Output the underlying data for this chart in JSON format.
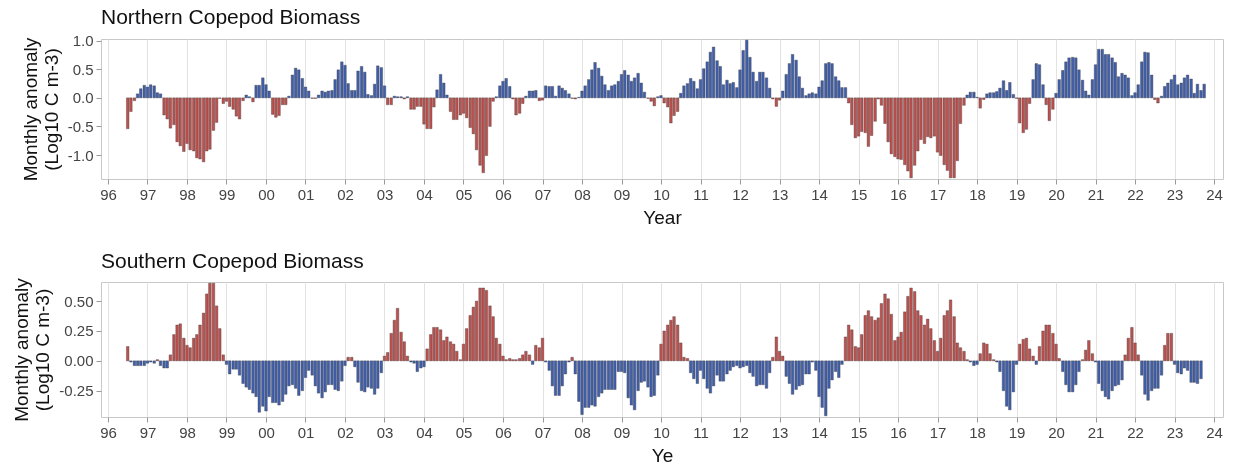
{
  "chart_data": [
    {
      "type": "bar",
      "title": "Northern Copepod Biomass",
      "xlabel": "Year",
      "ylabel": "Monthly anomaly\n(Log10 C m-3)",
      "xlim": [
        1995.95,
        2024.1
      ],
      "xticks": [
        {
          "value": 1996,
          "label": "96"
        },
        {
          "value": 1997,
          "label": "97"
        },
        {
          "value": 1998,
          "label": "98"
        },
        {
          "value": 1999,
          "label": "99"
        },
        {
          "value": 2000,
          "label": "00"
        },
        {
          "value": 2001,
          "label": "01"
        },
        {
          "value": 2002,
          "label": "02"
        },
        {
          "value": 2003,
          "label": "03"
        },
        {
          "value": 2004,
          "label": "04"
        },
        {
          "value": 2005,
          "label": "05"
        },
        {
          "value": 2006,
          "label": "06"
        },
        {
          "value": 2007,
          "label": "07"
        },
        {
          "value": 2008,
          "label": "08"
        },
        {
          "value": 2009,
          "label": "09"
        },
        {
          "value": 2010,
          "label": "10"
        },
        {
          "value": 2011,
          "label": "11"
        },
        {
          "value": 2012,
          "label": "12"
        },
        {
          "value": 2013,
          "label": "13"
        },
        {
          "value": 2014,
          "label": "14"
        },
        {
          "value": 2015,
          "label": "15"
        },
        {
          "value": 2016,
          "label": "16"
        },
        {
          "value": 2017,
          "label": "17"
        },
        {
          "value": 2018,
          "label": "18"
        },
        {
          "value": 2019,
          "label": "19"
        },
        {
          "value": 2020,
          "label": "20"
        },
        {
          "value": 2021,
          "label": "21"
        },
        {
          "value": 2022,
          "label": "22"
        },
        {
          "value": 2023,
          "label": "23"
        },
        {
          "value": 2024,
          "label": "24"
        }
      ],
      "ylim": [
        -1.42,
        1.03
      ],
      "yticks": [
        {
          "value": -1,
          "label": "-1.0"
        },
        -0.5,
        {
          "value": 0,
          "label": "0.0"
        },
        0.5,
        {
          "value": 1,
          "label": "1.0"
        }
      ],
      "grid": "x",
      "x": [
        1996.5,
        1996.58,
        1996.67,
        1996.75,
        1996.83,
        1996.92,
        1997,
        1997.08,
        1997.17,
        1997.25,
        1997.33,
        1997.42,
        1997.5,
        1997.58,
        1997.67,
        1997.75,
        1997.83,
        1997.92,
        1998,
        1998.08,
        1998.17,
        1998.25,
        1998.33,
        1998.42,
        1998.5,
        1998.58,
        1998.67,
        1998.75,
        1998.83,
        1998.92,
        1999,
        1999.08,
        1999.17,
        1999.25,
        1999.33,
        1999.42,
        1999.5,
        1999.58,
        1999.67,
        1999.75,
        1999.83,
        1999.92,
        2000,
        2000.08,
        2000.17,
        2000.25,
        2000.33,
        2000.42,
        2000.5,
        2000.58,
        2000.67,
        2000.75,
        2000.83,
        2000.92,
        2001,
        2001.08,
        2001.17,
        2001.25,
        2001.33,
        2001.42,
        2001.5,
        2001.58,
        2001.67,
        2001.75,
        2001.83,
        2001.92,
        2002,
        2002.08,
        2002.17,
        2002.25,
        2002.33,
        2002.42,
        2002.5,
        2002.58,
        2002.67,
        2002.75,
        2002.83,
        2002.92,
        2003,
        2003.08,
        2003.17,
        2003.25,
        2003.33,
        2003.42,
        2003.5,
        2003.58,
        2003.67,
        2003.75,
        2003.83,
        2003.92,
        2004,
        2004.08,
        2004.17,
        2004.25,
        2004.33,
        2004.42,
        2004.5,
        2004.58,
        2004.67,
        2004.75,
        2004.83,
        2004.92,
        2005,
        2005.08,
        2005.17,
        2005.25,
        2005.33,
        2005.42,
        2005.5,
        2005.58,
        2005.67,
        2005.75,
        2005.83,
        2005.92,
        2006,
        2006.08,
        2006.17,
        2006.25,
        2006.33,
        2006.42,
        2006.5,
        2006.58,
        2006.67,
        2006.75,
        2006.83,
        2006.92,
        2007,
        2007.08,
        2007.17,
        2007.25,
        2007.33,
        2007.42,
        2007.5,
        2007.58,
        2007.67,
        2007.75,
        2007.83,
        2007.92,
        2008,
        2008.08,
        2008.17,
        2008.25,
        2008.33,
        2008.42,
        2008.5,
        2008.58,
        2008.67,
        2008.75,
        2008.83,
        2008.92,
        2009,
        2009.08,
        2009.17,
        2009.25,
        2009.33,
        2009.42,
        2009.5,
        2009.58,
        2009.67,
        2009.75,
        2009.83,
        2009.92,
        2010,
        2010.08,
        2010.17,
        2010.25,
        2010.33,
        2010.42,
        2010.5,
        2010.58,
        2010.67,
        2010.75,
        2010.83,
        2010.92,
        2011,
        2011.08,
        2011.17,
        2011.25,
        2011.33,
        2011.42,
        2011.5,
        2011.58,
        2011.67,
        2011.75,
        2011.83,
        2011.92,
        2012,
        2012.08,
        2012.17,
        2012.25,
        2012.33,
        2012.42,
        2012.5,
        2012.58,
        2012.67,
        2012.75,
        2012.83,
        2012.92,
        2013,
        2013.08,
        2013.17,
        2013.25,
        2013.33,
        2013.42,
        2013.5,
        2013.58,
        2013.67,
        2013.75,
        2013.83,
        2013.92,
        2014,
        2014.08,
        2014.17,
        2014.25,
        2014.33,
        2014.42,
        2014.5,
        2014.58,
        2014.67,
        2014.75,
        2014.83,
        2014.92,
        2015,
        2015.08,
        2015.17,
        2015.25,
        2015.33,
        2015.42,
        2015.5,
        2015.58,
        2015.67,
        2015.75,
        2015.83,
        2015.92,
        2016,
        2016.08,
        2016.17,
        2016.25,
        2016.33,
        2016.42,
        2016.5,
        2016.58,
        2016.67,
        2016.75,
        2016.83,
        2016.92,
        2017,
        2017.08,
        2017.17,
        2017.25,
        2017.33,
        2017.42,
        2017.5,
        2017.58,
        2017.67,
        2017.75,
        2017.83,
        2017.92,
        2018,
        2018.08,
        2018.17,
        2018.25,
        2018.33,
        2018.42,
        2018.5,
        2018.58,
        2018.67,
        2018.75,
        2018.83,
        2018.92,
        2019,
        2019.08,
        2019.17,
        2019.25,
        2019.33,
        2019.42,
        2019.5,
        2019.58,
        2019.67,
        2019.75,
        2019.83,
        2019.92,
        2020,
        2020.08,
        2020.17,
        2020.25,
        2020.33,
        2020.42,
        2020.5,
        2020.58,
        2020.67,
        2020.75,
        2020.83,
        2020.92,
        2021,
        2021.08,
        2021.17,
        2021.25,
        2021.33,
        2021.42,
        2021.5,
        2021.58,
        2021.67,
        2021.75,
        2021.83,
        2021.92,
        2022,
        2022.08,
        2022.17,
        2022.25,
        2022.33,
        2022.42,
        2022.5,
        2022.58,
        2022.67,
        2022.75,
        2022.83,
        2022.92,
        2023,
        2023.08,
        2023.17,
        2023.25,
        2023.33,
        2023.42,
        2023.5,
        2023.58,
        2023.67,
        2023.75
      ],
      "values": [
        -0.54,
        -0.24,
        -0.05,
        0.07,
        0.16,
        0.22,
        0.19,
        0.23,
        0.21,
        0.09,
        0.07,
        -0.3,
        -0.37,
        -0.53,
        -0.47,
        -0.77,
        -0.84,
        -0.94,
        -0.8,
        -0.91,
        -0.93,
        -1.05,
        -1.07,
        -1.12,
        -0.93,
        -0.9,
        -0.57,
        -0.43,
        -0.01,
        -0.1,
        -0.06,
        -0.15,
        -0.2,
        -0.32,
        -0.37,
        -0.05,
        0.05,
        0.02,
        -0.07,
        0.22,
        0.22,
        0.35,
        0.23,
        0.12,
        -0.29,
        -0.34,
        -0.31,
        -0.12,
        -0.12,
        0.03,
        0.4,
        0.52,
        0.49,
        0.34,
        0.19,
        0.12,
        -0.01,
        -0.01,
        0.05,
        0.12,
        0.1,
        0.12,
        0.13,
        0.32,
        0.49,
        0.63,
        0.57,
        0.25,
        0.13,
        0.13,
        0.47,
        0.55,
        0.45,
        0.06,
        0.04,
        0.24,
        0.56,
        0.53,
        0.21,
        -0.12,
        -0.12,
        0.03,
        0.02,
        0.02,
        -0.02,
        0.02,
        -0.2,
        -0.2,
        -0.15,
        -0.15,
        -0.46,
        -0.54,
        -0.54,
        -0.16,
        0.14,
        0.41,
        0.26,
        0.05,
        -0.24,
        -0.38,
        -0.38,
        -0.3,
        -0.27,
        -0.35,
        -0.52,
        -0.63,
        -0.91,
        -1.18,
        -1.31,
        -1.01,
        -0.5,
        -0.06,
        0.02,
        0.21,
        0.29,
        0.34,
        0.2,
        -0.02,
        -0.3,
        -0.27,
        -0.1,
        0.03,
        0.12,
        0.12,
        0.13,
        -0.05,
        -0.04,
        0.21,
        0.2,
        0.2,
        0.03,
        0.21,
        0.17,
        0.13,
        0.07,
        -0.01,
        -0.02,
        0.01,
        0.12,
        0.21,
        0.32,
        0.49,
        0.62,
        0.52,
        0.38,
        0.23,
        0.13,
        0.21,
        0.23,
        0.29,
        0.41,
        0.48,
        0.4,
        0.29,
        0.35,
        0.43,
        0.26,
        0.1,
        -0.01,
        -0.06,
        -0.14,
        0.02,
        0.04,
        -0.09,
        -0.16,
        -0.44,
        -0.31,
        -0.24,
        0.08,
        0.21,
        0.25,
        0.34,
        0.29,
        0.16,
        0.32,
        0.51,
        0.63,
        0.8,
        0.89,
        0.65,
        0.55,
        0.23,
        0.31,
        0.25,
        0.27,
        0.18,
        0.49,
        0.83,
        1.01,
        0.71,
        0.45,
        0.29,
        0.45,
        0.45,
        0.35,
        0.17,
        -0.02,
        -0.15,
        -0.04,
        0.12,
        0.41,
        0.6,
        0.76,
        0.66,
        0.37,
        0.17,
        0.04,
        0.07,
        0.09,
        0.07,
        0.19,
        0.3,
        0.6,
        0.62,
        0.6,
        0.37,
        0.3,
        0.18,
        0.18,
        -0.09,
        -0.47,
        -0.7,
        -0.67,
        -0.59,
        -0.61,
        -0.85,
        -0.66,
        -0.41,
        -0.02,
        -0.13,
        -0.45,
        -0.77,
        -0.98,
        -1.03,
        -1.07,
        -1.08,
        -1.17,
        -1.28,
        -1.4,
        -1.18,
        -0.93,
        -0.73,
        -0.8,
        -0.68,
        -0.7,
        -0.67,
        -0.95,
        -1.01,
        -1.17,
        -1.27,
        -1.4,
        -1.4,
        -1.1,
        -0.45,
        -0.13,
        0.05,
        0.1,
        0.1,
        0.01,
        -0.18,
        -0.03,
        0.07,
        0.09,
        0.09,
        0.11,
        0.17,
        0.3,
        0.13,
        0.27,
        0.06,
        -0.01,
        -0.44,
        -0.61,
        -0.55,
        -0.1,
        0.32,
        0.6,
        0.58,
        0.23,
        -0.12,
        -0.4,
        -0.2,
        0.08,
        0.32,
        0.48,
        0.63,
        0.7,
        0.71,
        0.7,
        0.49,
        0.31,
        0.12,
        0.05,
        0.32,
        0.58,
        0.85,
        0.85,
        0.76,
        0.76,
        0.7,
        0.62,
        0.37,
        0.43,
        0.4,
        0.35,
        0.04,
        0.09,
        0.23,
        0.63,
        0.8,
        0.79,
        0.4,
        -0.03,
        -0.09,
        0.03,
        0.2,
        0.26,
        0.32,
        0.4,
        0.23,
        0.26,
        0.35,
        0.4,
        0.33,
        0.08,
        0.24,
        0.13,
        0.24
      ],
      "colors": [
        "#c0504d",
        "#c0504d",
        "#c0504d",
        "#3f5fae",
        "#3f5fae",
        "#3f5fae",
        "#3f5fae",
        "#3f5fae",
        "#3f5fae",
        "#3f5fae",
        "#3f5fae",
        "#c0504d",
        "#c0504d",
        "#c0504d",
        "#c0504d",
        "#c0504d",
        "#c0504d",
        "#c0504d",
        "#c0504d",
        "#c0504d",
        "#c0504d",
        "#c0504d",
        "#c0504d",
        "#c0504d",
        "#c0504d",
        "#c0504d",
        "#c0504d",
        "#c0504d",
        "#c0504d",
        "#c0504d",
        "#c0504d",
        "#c0504d",
        "#c0504d",
        "#c0504d",
        "#c0504d",
        "#c0504d",
        "#3f5fae",
        "#3f5fae",
        "#c0504d",
        "#3f5fae",
        "#3f5fae",
        "#3f5fae",
        "#3f5fae",
        "#3f5fae",
        "#c0504d",
        "#c0504d",
        "#c0504d",
        "#c0504d",
        "#c0504d",
        "#3f5fae",
        "#3f5fae",
        "#3f5fae",
        "#3f5fae",
        "#3f5fae",
        "#3f5fae",
        "#3f5fae",
        "#c0504d",
        "#c0504d",
        "#3f5fae",
        "#3f5fae",
        "#3f5fae",
        "#3f5fae",
        "#3f5fae",
        "#3f5fae",
        "#3f5fae",
        "#3f5fae",
        "#3f5fae",
        "#3f5fae",
        "#3f5fae",
        "#3f5fae",
        "#3f5fae",
        "#3f5fae",
        "#3f5fae",
        "#3f5fae",
        "#3f5fae",
        "#3f5fae",
        "#3f5fae",
        "#3f5fae",
        "#3f5fae",
        "#c0504d",
        "#c0504d",
        "#3f5fae",
        "#3f5fae",
        "#3f5fae",
        "#c0504d",
        "#3f5fae",
        "#c0504d",
        "#c0504d",
        "#c0504d",
        "#c0504d",
        "#c0504d",
        "#c0504d",
        "#c0504d",
        "#c0504d",
        "#3f5fae",
        "#3f5fae",
        "#3f5fae",
        "#3f5fae",
        "#c0504d",
        "#c0504d",
        "#c0504d",
        "#c0504d",
        "#c0504d",
        "#c0504d",
        "#c0504d",
        "#c0504d",
        "#c0504d",
        "#c0504d",
        "#c0504d",
        "#c0504d",
        "#c0504d",
        "#c0504d",
        "#3f5fae",
        "#3f5fae",
        "#3f5fae",
        "#3f5fae",
        "#3f5fae",
        "#c0504d",
        "#c0504d",
        "#c0504d",
        "#c0504d",
        "#3f5fae",
        "#3f5fae",
        "#3f5fae",
        "#3f5fae",
        "#c0504d",
        "#c0504d",
        "#3f5fae",
        "#3f5fae",
        "#3f5fae",
        "#3f5fae",
        "#3f5fae",
        "#3f5fae",
        "#3f5fae",
        "#3f5fae",
        "#c0504d",
        "#c0504d",
        "#3f5fae",
        "#3f5fae",
        "#3f5fae",
        "#3f5fae",
        "#3f5fae",
        "#3f5fae",
        "#3f5fae",
        "#3f5fae",
        "#3f5fae",
        "#3f5fae",
        "#3f5fae",
        "#3f5fae",
        "#3f5fae",
        "#3f5fae",
        "#3f5fae",
        "#3f5fae",
        "#3f5fae",
        "#3f5fae",
        "#3f5fae",
        "#3f5fae",
        "#3f5fae",
        "#c0504d",
        "#c0504d",
        "#c0504d",
        "#3f5fae",
        "#3f5fae",
        "#c0504d",
        "#c0504d",
        "#c0504d",
        "#c0504d",
        "#c0504d",
        "#3f5fae",
        "#3f5fae",
        "#3f5fae",
        "#3f5fae",
        "#3f5fae",
        "#3f5fae",
        "#3f5fae",
        "#3f5fae",
        "#3f5fae",
        "#3f5fae",
        "#3f5fae",
        "#3f5fae",
        "#3f5fae",
        "#3f5fae",
        "#3f5fae",
        "#3f5fae",
        "#3f5fae",
        "#3f5fae",
        "#3f5fae",
        "#3f5fae",
        "#3f5fae",
        "#3f5fae",
        "#3f5fae",
        "#3f5fae",
        "#3f5fae",
        "#3f5fae",
        "#3f5fae",
        "#3f5fae",
        "#c0504d",
        "#c0504d",
        "#c0504d",
        "#3f5fae",
        "#3f5fae",
        "#3f5fae",
        "#3f5fae",
        "#3f5fae",
        "#3f5fae",
        "#3f5fae",
        "#3f5fae",
        "#3f5fae",
        "#3f5fae",
        "#3f5fae",
        "#3f5fae",
        "#3f5fae",
        "#3f5fae",
        "#3f5fae",
        "#3f5fae",
        "#3f5fae",
        "#3f5fae",
        "#3f5fae",
        "#3f5fae",
        "#c0504d",
        "#c0504d",
        "#c0504d",
        "#c0504d",
        "#c0504d",
        "#c0504d",
        "#c0504d",
        "#c0504d",
        "#c0504d",
        "#c0504d",
        "#c0504d",
        "#c0504d",
        "#c0504d",
        "#c0504d",
        "#c0504d",
        "#c0504d",
        "#c0504d",
        "#c0504d",
        "#c0504d",
        "#c0504d",
        "#c0504d",
        "#c0504d",
        "#c0504d",
        "#c0504d",
        "#c0504d",
        "#c0504d",
        "#c0504d",
        "#c0504d",
        "#c0504d",
        "#c0504d",
        "#c0504d",
        "#c0504d",
        "#c0504d",
        "#c0504d",
        "#c0504d",
        "#c0504d",
        "#3f5fae",
        "#3f5fae",
        "#3f5fae",
        "#3f5fae",
        "#c0504d",
        "#c0504d",
        "#3f5fae",
        "#3f5fae",
        "#3f5fae",
        "#3f5fae",
        "#3f5fae",
        "#3f5fae",
        "#3f5fae",
        "#3f5fae",
        "#3f5fae",
        "#c0504d",
        "#c0504d",
        "#c0504d",
        "#c0504d",
        "#c0504d",
        "#3f5fae",
        "#3f5fae",
        "#3f5fae",
        "#3f5fae",
        "#c0504d",
        "#c0504d",
        "#c0504d",
        "#3f5fae",
        "#3f5fae",
        "#3f5fae",
        "#3f5fae",
        "#3f5fae",
        "#3f5fae",
        "#3f5fae",
        "#3f5fae",
        "#3f5fae",
        "#3f5fae",
        "#3f5fae",
        "#3f5fae",
        "#3f5fae",
        "#3f5fae",
        "#3f5fae",
        "#3f5fae",
        "#3f5fae",
        "#3f5fae",
        "#3f5fae",
        "#3f5fae",
        "#3f5fae",
        "#3f5fae",
        "#3f5fae",
        "#3f5fae",
        "#3f5fae",
        "#3f5fae",
        "#3f5fae",
        "#3f5fae",
        "#3f5fae",
        "#3f5fae",
        "#c0504d",
        "#c0504d",
        "#3f5fae",
        "#3f5fae",
        "#3f5fae",
        "#3f5fae",
        "#3f5fae",
        "#3f5fae",
        "#3f5fae",
        "#3f5fae",
        "#3f5fae",
        "#3f5fae",
        "#3f5fae",
        "#3f5fae",
        "#3f5fae",
        "#3f5fae"
      ]
    },
    {
      "type": "bar",
      "title": "Southern Copepod Biomass",
      "xlabel": "Ye",
      "ylabel": "Monthly anomaly\n(Log10 C m-3)",
      "xlim": [
        1995.95,
        2024.1
      ],
      "xticks": [
        {
          "value": 1996,
          "label": "96"
        },
        {
          "value": 1997,
          "label": "97"
        },
        {
          "value": 1998,
          "label": "98"
        },
        {
          "value": 1999,
          "label": "99"
        },
        {
          "value": 2000,
          "label": "00"
        },
        {
          "value": 2001,
          "label": "01"
        },
        {
          "value": 2002,
          "label": "02"
        },
        {
          "value": 2003,
          "label": "03"
        },
        {
          "value": 2004,
          "label": "04"
        },
        {
          "value": 2005,
          "label": "05"
        },
        {
          "value": 2006,
          "label": "06"
        },
        {
          "value": 2007,
          "label": "07"
        },
        {
          "value": 2008,
          "label": "08"
        },
        {
          "value": 2009,
          "label": "09"
        },
        {
          "value": 2010,
          "label": "10"
        },
        {
          "value": 2011,
          "label": "11"
        },
        {
          "value": 2012,
          "label": "12"
        },
        {
          "value": 2013,
          "label": "13"
        },
        {
          "value": 2014,
          "label": "14"
        },
        {
          "value": 2015,
          "label": "15"
        },
        {
          "value": 2016,
          "label": "16"
        },
        {
          "value": 2017,
          "label": "17"
        },
        {
          "value": 2018,
          "label": "18"
        },
        {
          "value": 2019,
          "label": "19"
        },
        {
          "value": 2020,
          "label": "20"
        },
        {
          "value": 2021,
          "label": "21"
        },
        {
          "value": 2022,
          "label": "22"
        },
        {
          "value": 2023,
          "label": "23"
        },
        {
          "value": 2024,
          "label": "24"
        }
      ],
      "ylim": [
        -0.47,
        0.66
      ],
      "yticks": [
        -0.25,
        {
          "value": 0,
          "label": "0.00"
        },
        0.25,
        {
          "value": 0.5,
          "label": "0.50"
        }
      ],
      "grid": "x",
      "x": [
        1996.5,
        1996.58,
        1996.67,
        1996.75,
        1996.83,
        1996.92,
        1997,
        1997.08,
        1997.17,
        1997.25,
        1997.33,
        1997.42,
        1997.5,
        1997.58,
        1997.67,
        1997.75,
        1997.83,
        1997.92,
        1998,
        1998.08,
        1998.17,
        1998.25,
        1998.33,
        1998.42,
        1998.5,
        1998.58,
        1998.67,
        1998.75,
        1998.83,
        1998.92,
        1999,
        1999.08,
        1999.17,
        1999.25,
        1999.33,
        1999.42,
        1999.5,
        1999.58,
        1999.67,
        1999.75,
        1999.83,
        1999.92,
        2000,
        2000.08,
        2000.17,
        2000.25,
        2000.33,
        2000.42,
        2000.5,
        2000.58,
        2000.67,
        2000.75,
        2000.83,
        2000.92,
        2001,
        2001.08,
        2001.17,
        2001.25,
        2001.33,
        2001.42,
        2001.5,
        2001.58,
        2001.67,
        2001.75,
        2001.83,
        2001.92,
        2002,
        2002.08,
        2002.17,
        2002.25,
        2002.33,
        2002.42,
        2002.5,
        2002.58,
        2002.67,
        2002.75,
        2002.83,
        2002.92,
        2003,
        2003.08,
        2003.17,
        2003.25,
        2003.33,
        2003.42,
        2003.5,
        2003.58,
        2003.67,
        2003.75,
        2003.83,
        2003.92,
        2004,
        2004.08,
        2004.17,
        2004.25,
        2004.33,
        2004.42,
        2004.5,
        2004.58,
        2004.67,
        2004.75,
        2004.83,
        2004.92,
        2005,
        2005.08,
        2005.17,
        2005.25,
        2005.33,
        2005.42,
        2005.5,
        2005.58,
        2005.67,
        2005.75,
        2005.83,
        2005.92,
        2006,
        2006.08,
        2006.17,
        2006.25,
        2006.33,
        2006.42,
        2006.5,
        2006.58,
        2006.67,
        2006.75,
        2006.83,
        2006.92,
        2007,
        2007.08,
        2007.17,
        2007.25,
        2007.33,
        2007.42,
        2007.5,
        2007.58,
        2007.67,
        2007.75,
        2007.83,
        2007.92,
        2008,
        2008.08,
        2008.17,
        2008.25,
        2008.33,
        2008.42,
        2008.5,
        2008.58,
        2008.67,
        2008.75,
        2008.83,
        2008.92,
        2009,
        2009.08,
        2009.17,
        2009.25,
        2009.33,
        2009.42,
        2009.5,
        2009.58,
        2009.67,
        2009.75,
        2009.83,
        2009.92,
        2010,
        2010.08,
        2010.17,
        2010.25,
        2010.33,
        2010.42,
        2010.5,
        2010.58,
        2010.67,
        2010.75,
        2010.83,
        2010.92,
        2011,
        2011.08,
        2011.17,
        2011.25,
        2011.33,
        2011.42,
        2011.5,
        2011.58,
        2011.67,
        2011.75,
        2011.83,
        2011.92,
        2012,
        2012.08,
        2012.17,
        2012.25,
        2012.33,
        2012.42,
        2012.5,
        2012.58,
        2012.67,
        2012.75,
        2012.83,
        2012.92,
        2013,
        2013.08,
        2013.17,
        2013.25,
        2013.33,
        2013.42,
        2013.5,
        2013.58,
        2013.67,
        2013.75,
        2013.83,
        2013.92,
        2014,
        2014.08,
        2014.17,
        2014.25,
        2014.33,
        2014.42,
        2014.5,
        2014.58,
        2014.67,
        2014.75,
        2014.83,
        2014.92,
        2015,
        2015.08,
        2015.17,
        2015.25,
        2015.33,
        2015.42,
        2015.5,
        2015.58,
        2015.67,
        2015.75,
        2015.83,
        2015.92,
        2016,
        2016.08,
        2016.17,
        2016.25,
        2016.33,
        2016.42,
        2016.5,
        2016.58,
        2016.67,
        2016.75,
        2016.83,
        2016.92,
        2017,
        2017.08,
        2017.17,
        2017.25,
        2017.33,
        2017.42,
        2017.5,
        2017.58,
        2017.67,
        2017.75,
        2017.83,
        2017.92,
        2018,
        2018.08,
        2018.17,
        2018.25,
        2018.33,
        2018.42,
        2018.5,
        2018.58,
        2018.67,
        2018.75,
        2018.83,
        2018.92,
        2019,
        2019.08,
        2019.17,
        2019.25,
        2019.33,
        2019.42,
        2019.5,
        2019.58,
        2019.67,
        2019.75,
        2019.83,
        2019.92,
        2020,
        2020.08,
        2020.17,
        2020.25,
        2020.33,
        2020.42,
        2020.5,
        2020.58,
        2020.67,
        2020.75,
        2020.83,
        2020.92,
        2021,
        2021.08,
        2021.17,
        2021.25,
        2021.33,
        2021.42,
        2021.5,
        2021.58,
        2021.67,
        2021.75,
        2021.83,
        2021.92,
        2022,
        2022.08,
        2022.17,
        2022.25,
        2022.33,
        2022.42,
        2022.5,
        2022.58,
        2022.67,
        2022.75,
        2022.83,
        2022.92,
        2023,
        2023.08,
        2023.17,
        2023.25,
        2023.33,
        2023.42,
        2023.5,
        2023.58,
        2023.67
      ],
      "values": [
        0.12,
        -0.01,
        -0.04,
        -0.04,
        -0.04,
        -0.04,
        -0.02,
        -0.01,
        -0.02,
        0.01,
        -0.04,
        -0.06,
        -0.06,
        0.05,
        0.22,
        0.3,
        0.31,
        0.19,
        0.13,
        0.11,
        0.19,
        0.22,
        0.3,
        0.4,
        0.56,
        0.65,
        0.65,
        0.46,
        0.27,
        0.05,
        -0.03,
        -0.11,
        -0.07,
        -0.07,
        -0.12,
        -0.19,
        -0.22,
        -0.24,
        -0.27,
        -0.3,
        -0.43,
        -0.38,
        -0.42,
        -0.3,
        -0.35,
        -0.35,
        -0.37,
        -0.34,
        -0.28,
        -0.21,
        -0.2,
        -0.23,
        -0.29,
        -0.25,
        -0.14,
        -0.08,
        -0.12,
        -0.21,
        -0.27,
        -0.31,
        -0.26,
        -0.2,
        -0.2,
        -0.24,
        -0.25,
        -0.17,
        -0.04,
        0.03,
        0.03,
        -0.05,
        -0.18,
        -0.25,
        -0.26,
        -0.22,
        -0.23,
        -0.28,
        -0.23,
        -0.1,
        0.04,
        0.07,
        0.23,
        0.34,
        0.44,
        0.24,
        0.16,
        0.04,
        -0.01,
        -0.02,
        -0.09,
        -0.06,
        -0.05,
        0.1,
        0.22,
        0.28,
        0.28,
        0.26,
        0.17,
        0.2,
        0.16,
        0.14,
        0.08,
        0.01,
        0.14,
        0.27,
        0.38,
        0.45,
        0.5,
        0.61,
        0.61,
        0.59,
        0.46,
        0.37,
        0.19,
        0.14,
        0.04,
        0.01,
        0.02,
        0.01,
        0.01,
        0.02,
        0.05,
        0.08,
        0.05,
        -0.03,
        0.13,
        0.11,
        0.19,
        -0.01,
        -0.08,
        -0.21,
        -0.29,
        -0.29,
        -0.21,
        -0.11,
        -0.01,
        0.03,
        -0.11,
        -0.34,
        -0.45,
        -0.39,
        -0.39,
        -0.37,
        -0.38,
        -0.3,
        -0.27,
        -0.24,
        -0.24,
        -0.24,
        -0.24,
        -0.09,
        -0.09,
        -0.1,
        -0.31,
        -0.37,
        -0.41,
        -0.25,
        -0.18,
        -0.17,
        -0.22,
        -0.3,
        -0.29,
        -0.12,
        0.14,
        0.25,
        0.3,
        0.34,
        0.37,
        0.3,
        0.15,
        0.03,
        0.02,
        -0.1,
        -0.15,
        -0.19,
        -0.08,
        -0.15,
        -0.23,
        -0.27,
        -0.21,
        -0.12,
        -0.17,
        -0.17,
        -0.11,
        -0.08,
        -0.05,
        -0.04,
        -0.06,
        -0.05,
        -0.04,
        -0.1,
        -0.13,
        -0.21,
        -0.2,
        -0.2,
        -0.23,
        -0.1,
        0.03,
        0.2,
        0.08,
        0.04,
        -0.13,
        -0.19,
        -0.28,
        -0.24,
        -0.21,
        -0.2,
        -0.11,
        -0.11,
        -0.01,
        -0.08,
        -0.3,
        -0.39,
        -0.46,
        -0.23,
        -0.16,
        -0.09,
        -0.14,
        -0.03,
        0.2,
        0.3,
        0.26,
        0.12,
        0.11,
        0.22,
        0.38,
        0.42,
        0.37,
        0.34,
        0.36,
        0.48,
        0.56,
        0.52,
        0.39,
        0.17,
        0.2,
        0.24,
        0.41,
        0.54,
        0.61,
        0.58,
        0.42,
        0.38,
        0.3,
        0.35,
        0.27,
        0.17,
        0.08,
        0.19,
        0.38,
        0.42,
        0.51,
        0.37,
        0.15,
        0.11,
        0.08,
        0.01,
        -0.01,
        -0.04,
        -0.03,
        0.06,
        0.15,
        0.14,
        0.06,
        0.01,
        -0.01,
        -0.09,
        -0.25,
        -0.38,
        -0.41,
        -0.26,
        -0.03,
        0.14,
        0.18,
        0.19,
        0.1,
        0.04,
        -0.03,
        0.12,
        0.25,
        0.3,
        0.3,
        0.23,
        0.14,
        0.02,
        -0.09,
        -0.2,
        -0.26,
        -0.26,
        -0.2,
        -0.09,
        0.01,
        0.09,
        0.17,
        0.06,
        -0.01,
        -0.19,
        -0.25,
        -0.3,
        -0.32,
        -0.25,
        -0.21,
        -0.2,
        -0.16,
        0.05,
        0.19,
        0.28,
        0.15,
        0.05,
        -0.12,
        -0.28,
        -0.33,
        -0.25,
        -0.23,
        -0.23,
        -0.12,
        0.13,
        0.23,
        0.23,
        -0.03,
        -0.1,
        -0.11,
        -0.06,
        -0.08,
        -0.18,
        -0.18,
        -0.19,
        -0.15
      ],
      "colors": [
        "#c0504d",
        "#3f5fae",
        "#3f5fae",
        "#3f5fae",
        "#3f5fae",
        "#3f5fae",
        "#3f5fae",
        "#3f5fae",
        "#3f5fae",
        "#c0504d",
        "#3f5fae",
        "#3f5fae",
        "#3f5fae",
        "#c0504d",
        "#c0504d",
        "#c0504d",
        "#c0504d",
        "#c0504d",
        "#c0504d",
        "#c0504d",
        "#c0504d",
        "#c0504d",
        "#c0504d",
        "#c0504d",
        "#c0504d",
        "#c0504d",
        "#c0504d",
        "#c0504d",
        "#c0504d",
        "#c0504d",
        "#3f5fae",
        "#3f5fae",
        "#3f5fae",
        "#3f5fae",
        "#3f5fae",
        "#3f5fae",
        "#3f5fae",
        "#3f5fae",
        "#3f5fae",
        "#3f5fae",
        "#3f5fae",
        "#3f5fae",
        "#3f5fae",
        "#3f5fae",
        "#3f5fae",
        "#3f5fae",
        "#3f5fae",
        "#3f5fae",
        "#3f5fae",
        "#3f5fae",
        "#3f5fae",
        "#3f5fae",
        "#3f5fae",
        "#3f5fae",
        "#3f5fae",
        "#3f5fae",
        "#3f5fae",
        "#3f5fae",
        "#3f5fae",
        "#3f5fae",
        "#3f5fae",
        "#3f5fae",
        "#3f5fae",
        "#3f5fae",
        "#3f5fae",
        "#3f5fae",
        "#3f5fae",
        "#c0504d",
        "#c0504d",
        "#3f5fae",
        "#3f5fae",
        "#3f5fae",
        "#3f5fae",
        "#3f5fae",
        "#3f5fae",
        "#3f5fae",
        "#3f5fae",
        "#3f5fae",
        "#c0504d",
        "#c0504d",
        "#c0504d",
        "#c0504d",
        "#c0504d",
        "#c0504d",
        "#c0504d",
        "#c0504d",
        "#3f5fae",
        "#3f5fae",
        "#3f5fae",
        "#3f5fae",
        "#3f5fae",
        "#c0504d",
        "#c0504d",
        "#c0504d",
        "#c0504d",
        "#c0504d",
        "#c0504d",
        "#c0504d",
        "#c0504d",
        "#c0504d",
        "#c0504d",
        "#c0504d",
        "#c0504d",
        "#c0504d",
        "#c0504d",
        "#c0504d",
        "#c0504d",
        "#c0504d",
        "#c0504d",
        "#c0504d",
        "#c0504d",
        "#c0504d",
        "#c0504d",
        "#c0504d",
        "#c0504d",
        "#c0504d",
        "#c0504d",
        "#c0504d",
        "#c0504d",
        "#c0504d",
        "#c0504d",
        "#c0504d",
        "#c0504d",
        "#3f5fae",
        "#c0504d",
        "#c0504d",
        "#c0504d",
        "#3f5fae",
        "#3f5fae",
        "#3f5fae",
        "#3f5fae",
        "#3f5fae",
        "#3f5fae",
        "#3f5fae",
        "#3f5fae",
        "#c0504d",
        "#3f5fae",
        "#3f5fae",
        "#3f5fae",
        "#3f5fae",
        "#3f5fae",
        "#3f5fae",
        "#3f5fae",
        "#3f5fae",
        "#3f5fae",
        "#3f5fae",
        "#3f5fae",
        "#3f5fae",
        "#3f5fae",
        "#3f5fae",
        "#3f5fae",
        "#3f5fae",
        "#3f5fae",
        "#3f5fae",
        "#3f5fae",
        "#3f5fae",
        "#3f5fae",
        "#3f5fae",
        "#3f5fae",
        "#3f5fae",
        "#3f5fae",
        "#3f5fae",
        "#c0504d",
        "#c0504d",
        "#c0504d",
        "#c0504d",
        "#c0504d",
        "#c0504d",
        "#c0504d",
        "#c0504d",
        "#c0504d",
        "#3f5fae",
        "#3f5fae",
        "#3f5fae",
        "#3f5fae",
        "#3f5fae",
        "#3f5fae",
        "#3f5fae",
        "#3f5fae",
        "#3f5fae",
        "#3f5fae",
        "#3f5fae",
        "#3f5fae",
        "#3f5fae",
        "#3f5fae",
        "#3f5fae",
        "#3f5fae",
        "#3f5fae",
        "#3f5fae",
        "#3f5fae",
        "#3f5fae",
        "#3f5fae",
        "#3f5fae",
        "#3f5fae",
        "#3f5fae",
        "#3f5fae",
        "#c0504d",
        "#c0504d",
        "#c0504d",
        "#c0504d",
        "#3f5fae",
        "#3f5fae",
        "#3f5fae",
        "#3f5fae",
        "#3f5fae",
        "#3f5fae",
        "#3f5fae",
        "#3f5fae",
        "#3f5fae",
        "#3f5fae",
        "#3f5fae",
        "#3f5fae",
        "#3f5fae",
        "#3f5fae",
        "#3f5fae",
        "#3f5fae",
        "#3f5fae",
        "#3f5fae",
        "#c0504d",
        "#c0504d",
        "#c0504d",
        "#c0504d",
        "#c0504d",
        "#c0504d",
        "#c0504d",
        "#c0504d",
        "#c0504d",
        "#c0504d",
        "#c0504d",
        "#c0504d",
        "#c0504d",
        "#c0504d",
        "#c0504d",
        "#c0504d",
        "#c0504d",
        "#c0504d",
        "#c0504d",
        "#c0504d",
        "#c0504d",
        "#c0504d",
        "#c0504d",
        "#c0504d",
        "#c0504d",
        "#c0504d",
        "#c0504d",
        "#c0504d",
        "#c0504d",
        "#c0504d",
        "#c0504d",
        "#c0504d",
        "#c0504d",
        "#c0504d",
        "#c0504d",
        "#c0504d",
        "#c0504d",
        "#c0504d",
        "#3f5fae",
        "#3f5fae",
        "#3f5fae",
        "#c0504d",
        "#c0504d",
        "#c0504d",
        "#c0504d",
        "#c0504d",
        "#3f5fae",
        "#3f5fae",
        "#3f5fae",
        "#3f5fae",
        "#3f5fae",
        "#3f5fae",
        "#3f5fae",
        "#c0504d",
        "#c0504d",
        "#c0504d",
        "#c0504d",
        "#c0504d",
        "#3f5fae",
        "#c0504d",
        "#c0504d",
        "#c0504d",
        "#c0504d",
        "#c0504d",
        "#c0504d",
        "#c0504d",
        "#3f5fae",
        "#3f5fae",
        "#3f5fae",
        "#3f5fae",
        "#3f5fae",
        "#3f5fae",
        "#c0504d",
        "#c0504d",
        "#c0504d",
        "#c0504d",
        "#3f5fae",
        "#3f5fae",
        "#3f5fae",
        "#3f5fae",
        "#3f5fae",
        "#3f5fae",
        "#3f5fae",
        "#3f5fae",
        "#3f5fae",
        "#c0504d",
        "#c0504d",
        "#c0504d",
        "#c0504d",
        "#c0504d",
        "#3f5fae",
        "#3f5fae",
        "#3f5fae",
        "#3f5fae",
        "#3f5fae",
        "#3f5fae",
        "#3f5fae",
        "#c0504d",
        "#c0504d",
        "#c0504d",
        "#3f5fae",
        "#3f5fae",
        "#3f5fae",
        "#3f5fae",
        "#3f5fae",
        "#3f5fae",
        "#3f5fae",
        "#3f5fae",
        "#3f5fae"
      ]
    }
  ]
}
